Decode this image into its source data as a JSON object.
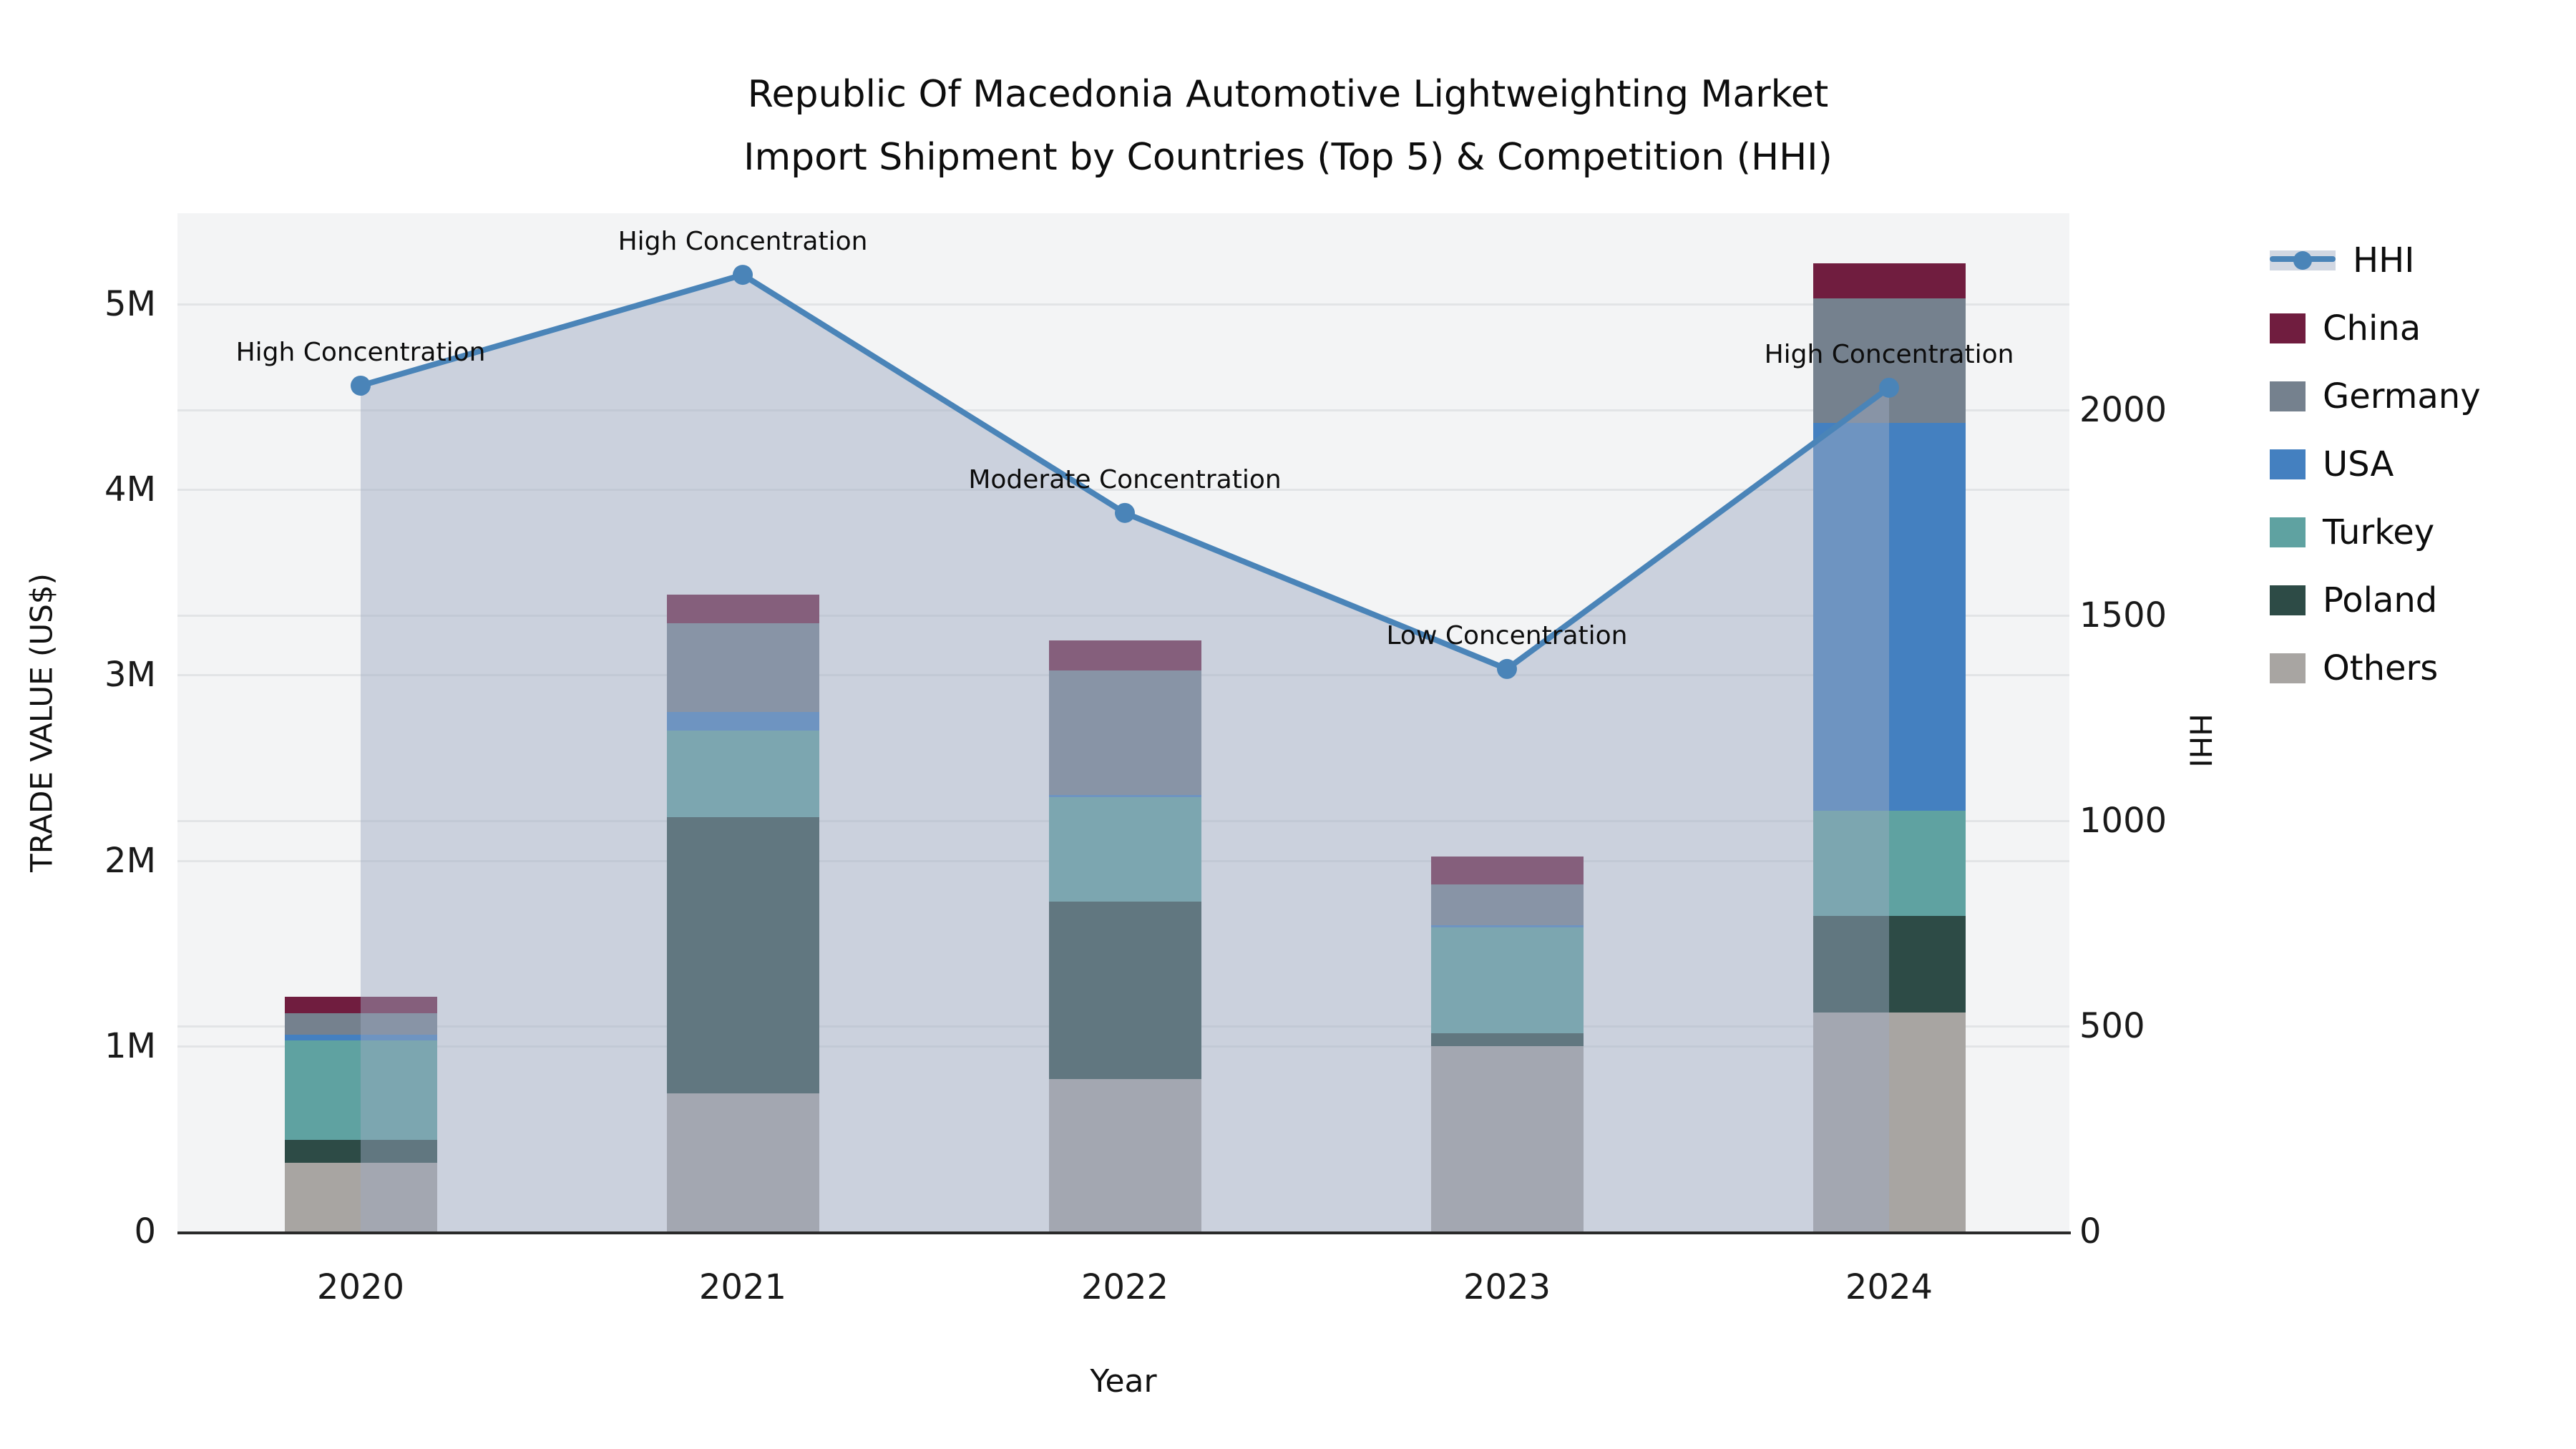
{
  "title": {
    "line1": "Republic Of Macedonia Automotive Lightweighting Market",
    "line2": "Import Shipment by Countries (Top 5) & Competition (HHI)"
  },
  "chart_data": {
    "type": "bar",
    "subtype": "stacked-bars-with-hhi-line-and-area",
    "categories": [
      "2020",
      "2021",
      "2022",
      "2023",
      "2024"
    ],
    "xlabel": "Year",
    "ylabel_left": "TRADE VALUE (US$)",
    "ylabel_right": "HHI",
    "unit_left": "US$ millions",
    "series": [
      {
        "name": "China",
        "color": "#701d3f",
        "values": [
          0.09,
          0.155,
          0.16,
          0.15,
          0.19
        ]
      },
      {
        "name": "Germany",
        "color": "#75818e",
        "values": [
          0.115,
          0.48,
          0.67,
          0.22,
          0.67
        ]
      },
      {
        "name": "USA",
        "color": "#4480c0",
        "values": [
          0.03,
          0.1,
          0.015,
          0.01,
          2.09
        ]
      },
      {
        "name": "Turkey",
        "color": "#5fa2a1",
        "values": [
          0.535,
          0.465,
          0.56,
          0.57,
          0.57
        ]
      },
      {
        "name": "Poland",
        "color": "#2d4b46",
        "values": [
          0.125,
          1.49,
          0.96,
          0.07,
          0.52
        ]
      },
      {
        "name": "Others",
        "color": "#a8a5a2",
        "values": [
          0.37,
          0.745,
          0.82,
          1.0,
          1.18
        ]
      }
    ],
    "stack_order_bottom_to_top": [
      "Others",
      "Poland",
      "Turkey",
      "USA",
      "Germany",
      "China"
    ],
    "bar_totals_millions": [
      1.27,
      3.44,
      3.19,
      2.02,
      5.22
    ],
    "hhi": {
      "name": "HHI",
      "line_color": "#4a84b8",
      "area_fill": "rgba(158,171,193,0.47)",
      "values": [
        2060,
        2330,
        1750,
        1370,
        2055
      ]
    },
    "annotations": [
      {
        "x": "2020",
        "text": "High Concentration"
      },
      {
        "x": "2021",
        "text": "High Concentration"
      },
      {
        "x": "2022",
        "text": "Moderate Concentration"
      },
      {
        "x": "2023",
        "text": "Low Concentration"
      },
      {
        "x": "2024",
        "text": "High Concentration"
      }
    ],
    "y_left_ticks": [
      {
        "label": "0",
        "value": 0
      },
      {
        "label": "1M",
        "value": 1
      },
      {
        "label": "2M",
        "value": 2
      },
      {
        "label": "3M",
        "value": 3
      },
      {
        "label": "4M",
        "value": 4
      },
      {
        "label": "5M",
        "value": 5
      }
    ],
    "y_right_ticks": [
      {
        "label": "0",
        "value": 0
      },
      {
        "label": "500",
        "value": 500
      },
      {
        "label": "1000",
        "value": 1000
      },
      {
        "label": "1500",
        "value": 1500
      },
      {
        "label": "2000",
        "value": 2000
      }
    ],
    "ylim_left": [
      0,
      5.49
    ],
    "ylim_right": [
      0,
      2480
    ],
    "grid": true,
    "legend_position": "right",
    "legend_items": [
      "HHI",
      "China",
      "Germany",
      "USA",
      "Turkey",
      "Poland",
      "Others"
    ]
  },
  "colors": {
    "plot_bg": "#f3f4f5",
    "grid": "#e2e4e6",
    "axis_line": "#2a2a2a",
    "text": "#111111"
  }
}
